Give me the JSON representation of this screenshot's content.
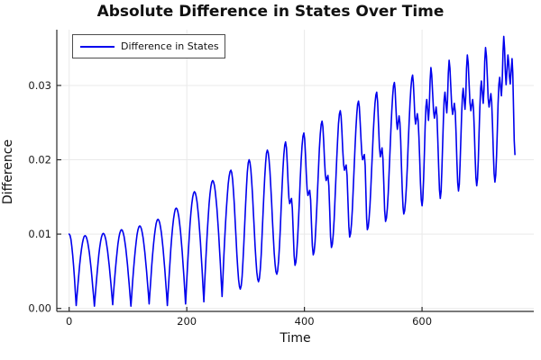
{
  "chart_data": {
    "type": "line",
    "title": "Absolute Difference in States Over Time",
    "xlabel": "Time",
    "ylabel": "Difference",
    "xlim": [
      -21,
      790
    ],
    "ylim": [
      -0.0004,
      0.0375
    ],
    "grid": true,
    "legend": {
      "position": "top-left"
    },
    "x_ticks": [
      {
        "label": "0",
        "value": 0
      },
      {
        "label": "200",
        "value": 200
      },
      {
        "label": "400",
        "value": 400
      },
      {
        "label": "600",
        "value": 600
      }
    ],
    "y_ticks": [
      {
        "label": "0.00",
        "value": 0.0
      },
      {
        "label": "0.01",
        "value": 0.01
      },
      {
        "label": "0.02",
        "value": 0.02
      },
      {
        "label": "0.03",
        "value": 0.03
      }
    ],
    "series": [
      {
        "name": "Difference in States",
        "color": "#0000ee",
        "points": [
          [
            0,
            0.01
          ],
          [
            12,
            0.0004
          ],
          [
            27,
            0.0098
          ],
          [
            43,
            0.0003
          ],
          [
            58,
            0.0101
          ],
          [
            74,
            0.0005
          ],
          [
            89,
            0.0106
          ],
          [
            105,
            0.0003
          ],
          [
            120,
            0.0111
          ],
          [
            136,
            0.0006
          ],
          [
            151,
            0.012
          ],
          [
            167,
            0.0004
          ],
          [
            182,
            0.0135
          ],
          [
            198,
            0.0006
          ],
          [
            213,
            0.0157
          ],
          [
            229,
            0.0009
          ],
          [
            244,
            0.0172
          ],
          [
            260,
            0.0016
          ],
          [
            275,
            0.0186
          ],
          [
            291,
            0.0026
          ],
          [
            306,
            0.02
          ],
          [
            322,
            0.0036
          ],
          [
            337,
            0.0213
          ],
          [
            353,
            0.0046
          ],
          [
            368,
            0.0224
          ],
          [
            375,
            0.0141
          ],
          [
            378,
            0.0148
          ],
          [
            384,
            0.0058
          ],
          [
            399,
            0.0236
          ],
          [
            406,
            0.0152
          ],
          [
            409,
            0.0159
          ],
          [
            415,
            0.0072
          ],
          [
            430,
            0.0252
          ],
          [
            437,
            0.0172
          ],
          [
            440,
            0.0179
          ],
          [
            446,
            0.0082
          ],
          [
            461,
            0.0266
          ],
          [
            468,
            0.0186
          ],
          [
            471,
            0.0193
          ],
          [
            477,
            0.0096
          ],
          [
            492,
            0.0279
          ],
          [
            499,
            0.02
          ],
          [
            502,
            0.0207
          ],
          [
            507,
            0.0106
          ],
          [
            523,
            0.0291
          ],
          [
            529,
            0.0204
          ],
          [
            532,
            0.0216
          ],
          [
            538,
            0.0117
          ],
          [
            553,
            0.0304
          ],
          [
            558,
            0.0241
          ],
          [
            561,
            0.0259
          ],
          [
            569,
            0.0127
          ],
          [
            584,
            0.0314
          ],
          [
            589,
            0.0248
          ],
          [
            592,
            0.0262
          ],
          [
            600,
            0.0138
          ],
          [
            608,
            0.0281
          ],
          [
            611,
            0.0253
          ],
          [
            615,
            0.0324
          ],
          [
            621,
            0.0256
          ],
          [
            624,
            0.0271
          ],
          [
            631,
            0.0148
          ],
          [
            639,
            0.0291
          ],
          [
            642,
            0.0263
          ],
          [
            646,
            0.0334
          ],
          [
            652,
            0.0261
          ],
          [
            655,
            0.0276
          ],
          [
            662,
            0.0158
          ],
          [
            670,
            0.0296
          ],
          [
            673,
            0.0268
          ],
          [
            677,
            0.0341
          ],
          [
            683,
            0.0266
          ],
          [
            686,
            0.0281
          ],
          [
            693,
            0.0165
          ],
          [
            701,
            0.0306
          ],
          [
            704,
            0.0276
          ],
          [
            708,
            0.0351
          ],
          [
            714,
            0.0271
          ],
          [
            717,
            0.0289
          ],
          [
            724,
            0.017
          ],
          [
            732,
            0.0311
          ],
          [
            735,
            0.0286
          ],
          [
            739,
            0.0366
          ],
          [
            743,
            0.0301
          ],
          [
            746,
            0.0341
          ],
          [
            750,
            0.0302
          ],
          [
            753,
            0.0336
          ],
          [
            758,
            0.0207
          ]
        ]
      }
    ]
  },
  "colors": {
    "line": "#0000ee",
    "grid": "#e9e9e9",
    "spine": "#2a2a2a",
    "tick_text": "#1a1a1a"
  }
}
